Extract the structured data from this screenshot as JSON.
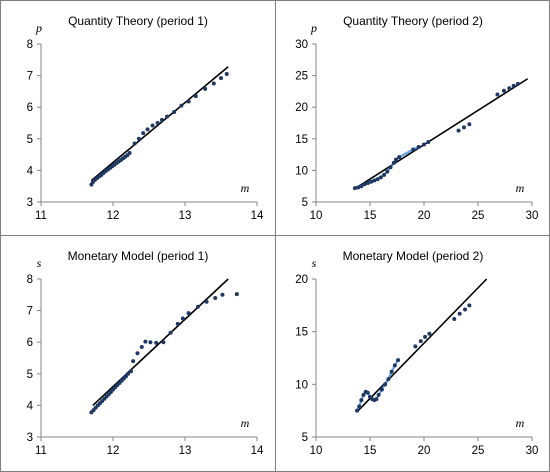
{
  "chart_data": [
    {
      "type": "scatter",
      "title": "Quantity Theory (period 1)",
      "xlabel": "m",
      "ylabel": "p",
      "xlim": [
        11,
        14
      ],
      "ylim": [
        3,
        8
      ],
      "xticks": [
        "11",
        "12",
        "13",
        "14"
      ],
      "yticks": [
        "3",
        "4",
        "5",
        "6",
        "7",
        "8"
      ],
      "legend": "none",
      "colors": {
        "points": "#1f3864",
        "fit_line": "#000000",
        "cluster_highlight": "#4a90d9"
      },
      "series": [
        {
          "points": [
            [
              11.7,
              3.55
            ],
            [
              11.72,
              3.63
            ],
            [
              11.75,
              3.7
            ],
            [
              11.78,
              3.76
            ],
            [
              11.81,
              3.81
            ],
            [
              11.84,
              3.86
            ],
            [
              11.87,
              3.92
            ],
            [
              11.9,
              3.98
            ],
            [
              11.93,
              4.03
            ],
            [
              11.96,
              4.08
            ],
            [
              11.99,
              4.13
            ],
            [
              12.02,
              4.18
            ],
            [
              12.05,
              4.23
            ],
            [
              12.08,
              4.28
            ],
            [
              12.11,
              4.33
            ],
            [
              12.14,
              4.38
            ],
            [
              12.17,
              4.43
            ],
            [
              12.2,
              4.48
            ],
            [
              12.23,
              4.55
            ],
            [
              12.3,
              4.85
            ],
            [
              12.36,
              5.0
            ],
            [
              12.42,
              5.18
            ],
            [
              12.48,
              5.3
            ],
            [
              12.55,
              5.42
            ],
            [
              12.62,
              5.5
            ],
            [
              12.68,
              5.6
            ],
            [
              12.75,
              5.7
            ],
            [
              12.85,
              5.85
            ],
            [
              12.95,
              6.05
            ],
            [
              13.05,
              6.18
            ],
            [
              13.15,
              6.35
            ],
            [
              13.28,
              6.58
            ],
            [
              13.4,
              6.75
            ],
            [
              13.5,
              6.92
            ],
            [
              13.58,
              7.05
            ]
          ]
        },
        {
          "name": "",
          "line": [
            [
              11.7,
              3.68
            ],
            [
              13.6,
              7.28
            ]
          ]
        }
      ]
    },
    {
      "type": "scatter",
      "title": "Quantity Theory (period 2)",
      "xlabel": "m",
      "ylabel": "p",
      "xlim": [
        10,
        30
      ],
      "ylim": [
        5,
        30
      ],
      "xticks": [
        "10",
        "15",
        "20",
        "25",
        "30"
      ],
      "yticks": [
        "5",
        "10",
        "15",
        "20",
        "25",
        "30"
      ],
      "legend": "none",
      "colors": {
        "points": "#1f3864",
        "fit_line": "#000000",
        "cluster_highlight": "#4a90d9"
      },
      "series": [
        {
          "points": [
            [
              13.6,
              7.2
            ],
            [
              13.9,
              7.3
            ],
            [
              14.2,
              7.5
            ],
            [
              14.5,
              7.8
            ],
            [
              14.8,
              8.0
            ],
            [
              15.1,
              8.2
            ],
            [
              15.4,
              8.4
            ],
            [
              15.7,
              8.6
            ],
            [
              16.0,
              8.9
            ],
            [
              16.3,
              9.3
            ],
            [
              16.6,
              9.8
            ],
            [
              16.9,
              10.5
            ],
            [
              17.2,
              11.2
            ],
            [
              17.4,
              11.7
            ],
            [
              17.7,
              12.1
            ],
            [
              19.0,
              13.3
            ],
            [
              19.5,
              13.7
            ],
            [
              20.0,
              14.1
            ],
            [
              20.4,
              14.5
            ],
            [
              23.2,
              16.3
            ],
            [
              23.7,
              16.8
            ],
            [
              24.2,
              17.3
            ],
            [
              26.8,
              22.0
            ],
            [
              27.4,
              22.6
            ],
            [
              27.9,
              23.0
            ],
            [
              28.3,
              23.4
            ],
            [
              28.7,
              23.7
            ]
          ]
        },
        {
          "name": "",
          "line": [
            [
              13.5,
              7.0
            ],
            [
              29.6,
              24.5
            ]
          ]
        }
      ]
    },
    {
      "type": "scatter",
      "title": "Monetary Model (period 1)",
      "xlabel": "m",
      "ylabel": "s",
      "xlim": [
        11,
        14
      ],
      "ylim": [
        3,
        8
      ],
      "xticks": [
        "11",
        "12",
        "13",
        "14"
      ],
      "yticks": [
        "3",
        "4",
        "5",
        "6",
        "7",
        "8"
      ],
      "legend": "none",
      "colors": {
        "points": "#1f3864",
        "fit_line": "#000000",
        "cluster_highlight": "#4a90d9"
      },
      "series": [
        {
          "points": [
            [
              11.7,
              3.78
            ],
            [
              11.73,
              3.85
            ],
            [
              11.76,
              3.93
            ],
            [
              11.79,
              4.0
            ],
            [
              11.82,
              4.07
            ],
            [
              11.85,
              4.14
            ],
            [
              11.88,
              4.21
            ],
            [
              11.91,
              4.28
            ],
            [
              11.94,
              4.35
            ],
            [
              11.97,
              4.42
            ],
            [
              12.0,
              4.5
            ],
            [
              12.03,
              4.57
            ],
            [
              12.06,
              4.64
            ],
            [
              12.09,
              4.71
            ],
            [
              12.12,
              4.78
            ],
            [
              12.15,
              4.85
            ],
            [
              12.18,
              4.92
            ],
            [
              12.21,
              5.0
            ],
            [
              12.25,
              5.08
            ],
            [
              12.28,
              5.4
            ],
            [
              12.34,
              5.65
            ],
            [
              12.4,
              5.85
            ],
            [
              12.45,
              6.02
            ],
            [
              12.52,
              6.0
            ],
            [
              12.6,
              5.98
            ],
            [
              12.7,
              6.0
            ],
            [
              12.8,
              6.3
            ],
            [
              12.9,
              6.58
            ],
            [
              12.97,
              6.75
            ],
            [
              13.05,
              6.92
            ],
            [
              13.18,
              7.12
            ],
            [
              13.3,
              7.28
            ],
            [
              13.42,
              7.4
            ],
            [
              13.52,
              7.5
            ],
            [
              13.72,
              7.52
            ]
          ]
        },
        {
          "name": "",
          "line": [
            [
              11.72,
              4.0
            ],
            [
              13.6,
              8.0
            ]
          ]
        }
      ]
    },
    {
      "type": "scatter",
      "title": "Monetary Model (period 2)",
      "xlabel": "m",
      "ylabel": "s",
      "xlim": [
        10,
        30
      ],
      "ylim": [
        5,
        20
      ],
      "xticks": [
        "10",
        "15",
        "20",
        "25",
        "30"
      ],
      "yticks": [
        "5",
        "10",
        "15",
        "20"
      ],
      "legend": "none",
      "colors": {
        "points": "#1f3864",
        "fit_line": "#000000",
        "cluster_highlight": "#4a90d9"
      },
      "series": [
        {
          "points": [
            [
              13.8,
              7.5
            ],
            [
              14.0,
              7.9
            ],
            [
              14.2,
              8.5
            ],
            [
              14.4,
              9.0
            ],
            [
              14.6,
              9.3
            ],
            [
              14.8,
              9.2
            ],
            [
              15.0,
              8.8
            ],
            [
              15.2,
              8.6
            ],
            [
              15.4,
              8.5
            ],
            [
              15.6,
              8.6
            ],
            [
              15.8,
              9.0
            ],
            [
              16.1,
              9.5
            ],
            [
              16.4,
              10.0
            ],
            [
              16.7,
              10.5
            ],
            [
              17.0,
              11.2
            ],
            [
              17.3,
              11.8
            ],
            [
              17.6,
              12.3
            ],
            [
              19.2,
              13.6
            ],
            [
              19.7,
              14.1
            ],
            [
              20.1,
              14.5
            ],
            [
              20.5,
              14.8
            ],
            [
              22.8,
              16.2
            ],
            [
              23.3,
              16.7
            ],
            [
              23.8,
              17.1
            ],
            [
              24.2,
              17.5
            ]
          ]
        },
        {
          "name": "",
          "line": [
            [
              13.9,
              7.5
            ],
            [
              25.8,
              20.0
            ]
          ]
        }
      ]
    }
  ]
}
